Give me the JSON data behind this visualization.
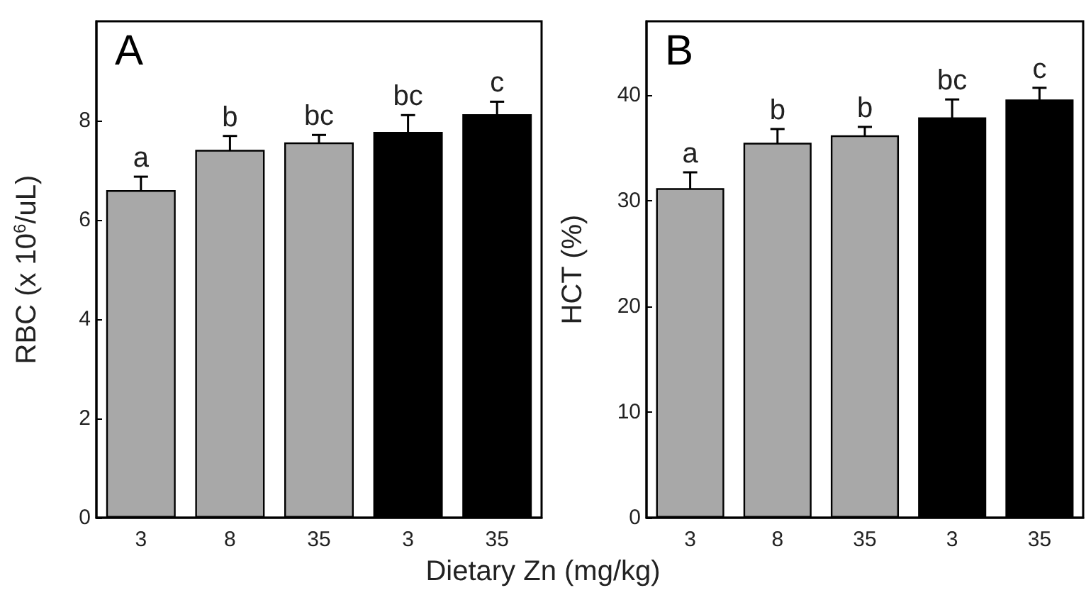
{
  "chart_data": [
    {
      "type": "bar",
      "title": "A",
      "xlabel": "Dietary Zn (mg/kg)",
      "ylabel": "RBC (x 10$^{6}$/uL)",
      "categories": [
        "3",
        "8",
        "35",
        "3",
        "35"
      ],
      "values": [
        6.6,
        7.41,
        7.56,
        7.77,
        8.13
      ],
      "errors": [
        0.27,
        0.28,
        0.15,
        0.34,
        0.25
      ],
      "colors": [
        "#a8a8a8",
        "#a8a8a8",
        "#a8a8a8",
        "#000000",
        "#000000"
      ],
      "annotations": [
        "a",
        "b",
        "bc",
        "bc",
        "c"
      ],
      "ylim": [
        0,
        10
      ],
      "yticks": [
        0,
        2,
        4,
        6,
        8
      ],
      "grid": false
    },
    {
      "type": "bar",
      "title": "B",
      "ylabel": "HCT (%)",
      "categories": [
        "3",
        "8",
        "35",
        "3",
        "35"
      ],
      "values": [
        31.2,
        35.5,
        36.2,
        37.9,
        39.6
      ],
      "errors": [
        1.5,
        1.3,
        0.8,
        1.7,
        1.1
      ],
      "colors": [
        "#a8a8a8",
        "#a8a8a8",
        "#a8a8a8",
        "#000000",
        "#000000"
      ],
      "annotations": [
        "a",
        "b",
        "b",
        "bc",
        "c"
      ],
      "ylim": [
        0,
        47
      ],
      "yticks": [
        0,
        10,
        20,
        30,
        40
      ],
      "grid": false
    }
  ]
}
